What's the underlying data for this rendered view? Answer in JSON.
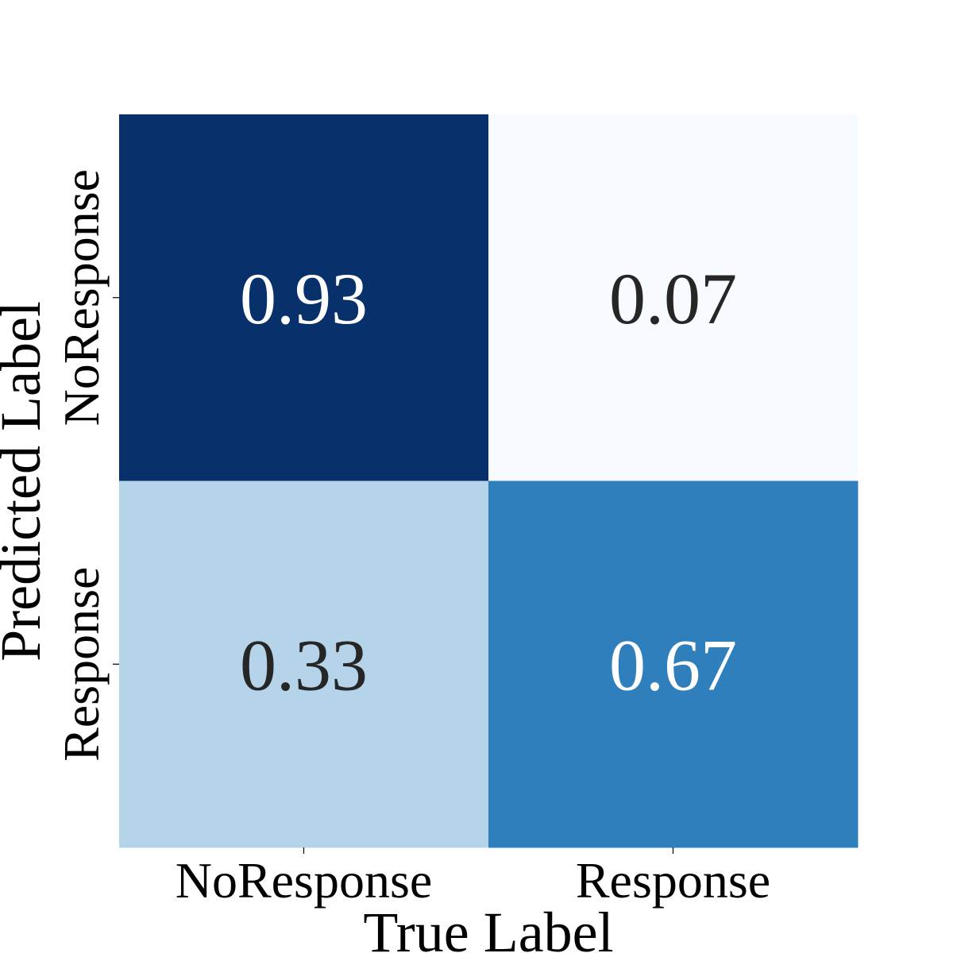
{
  "chart_data": {
    "type": "heatmap",
    "title": "",
    "xlabel": "True Label",
    "ylabel": "Predicted Label",
    "x_categories": [
      "NoResponse",
      "Response"
    ],
    "y_categories": [
      "NoResponse",
      "Response"
    ],
    "values": [
      [
        0.93,
        0.07
      ],
      [
        0.33,
        0.67
      ]
    ],
    "value_labels": [
      [
        "0.93",
        "0.07"
      ],
      [
        "0.33",
        "0.67"
      ]
    ],
    "colormap": "Blues",
    "color_range": [
      0.07,
      0.93
    ],
    "colorbar": false,
    "grid": false,
    "colors": {
      "low": "#f7fbff",
      "high": "#08306b",
      "text_light": "#ffffff",
      "text_dark": "#262626"
    }
  }
}
